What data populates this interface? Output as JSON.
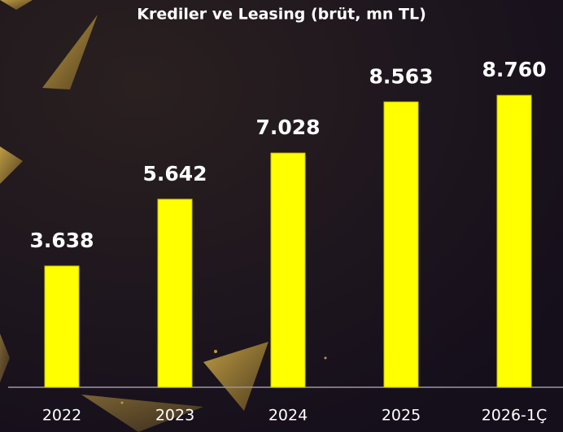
{
  "chart_data": {
    "type": "bar",
    "title": "Krediler ve Leasing (brüt, mn TL)",
    "categories": [
      "2022",
      "2023",
      "2024",
      "2025",
      "2026-1Ç"
    ],
    "values": [
      3638,
      5642,
      7028,
      8563,
      8760
    ],
    "value_labels": [
      "3.638",
      "5.642",
      "7.028",
      "8.563",
      "8.760"
    ],
    "color": "#ffff00"
  }
}
